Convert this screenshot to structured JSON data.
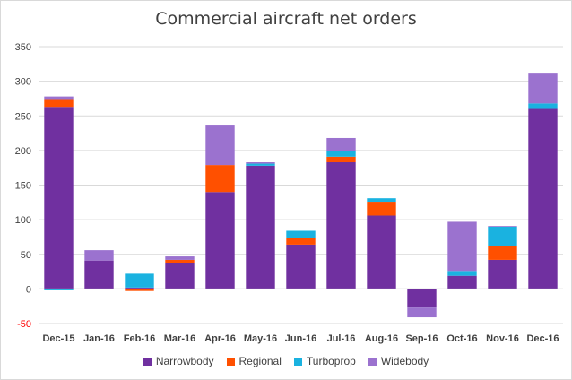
{
  "chart_data": {
    "type": "bar",
    "stacked": true,
    "title": "Commercial aircraft net orders",
    "xlabel": "",
    "ylabel": "",
    "ylim": [
      -50,
      350
    ],
    "yticks": [
      -50,
      0,
      50,
      100,
      150,
      200,
      250,
      300,
      350
    ],
    "ytick_labels": [
      "-50",
      "0",
      "50",
      "100",
      "150",
      "200",
      "250",
      "300",
      "350"
    ],
    "grid": true,
    "legend_position": "bottom",
    "categories": [
      "Dec-15",
      "Jan-16",
      "Feb-16",
      "Mar-16",
      "Apr-16",
      "May-16",
      "Jun-16",
      "Jul-16",
      "Aug-16",
      "Sep-16",
      "Oct-16",
      "Nov-16",
      "Dec-16"
    ],
    "series": [
      {
        "name": "Narrowbody",
        "color": "#7030a0",
        "values": [
          263,
          41,
          2,
          38,
          140,
          178,
          64,
          183,
          106,
          -27,
          19,
          42,
          260
        ]
      },
      {
        "name": "Regional",
        "color": "#ff5000",
        "values": [
          10,
          0,
          -3,
          4,
          39,
          0,
          10,
          8,
          20,
          0,
          0,
          20,
          0
        ]
      },
      {
        "name": "Turboprop",
        "color": "#1ab2e0",
        "values": [
          -2,
          0,
          20,
          0,
          0,
          3,
          10,
          8,
          5,
          0,
          7,
          28,
          8
        ]
      },
      {
        "name": "Widebody",
        "color": "#9b72cf",
        "values": [
          5,
          15,
          0,
          5,
          57,
          2,
          0,
          19,
          0,
          -14,
          71,
          1,
          43
        ]
      }
    ]
  }
}
